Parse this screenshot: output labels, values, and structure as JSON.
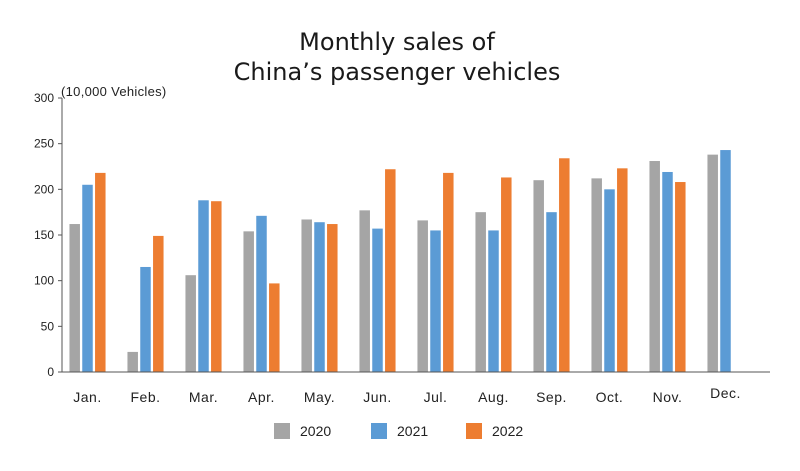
{
  "chart_data": {
    "type": "bar",
    "title_lines": [
      "Monthly sales of",
      "China’s passenger vehicles"
    ],
    "ylabel": "(10,000 Vehicles)",
    "ylim": [
      0,
      300
    ],
    "yticks": [
      "0",
      "50",
      "100",
      "150",
      "200",
      "250",
      "300"
    ],
    "categories": [
      "Jan.",
      "Feb.",
      "Mar.",
      "Apr.",
      "May.",
      "Jun.",
      "Jul.",
      "Aug.",
      "Sep.",
      "Oct.",
      "Nov.",
      "Dec."
    ],
    "series": [
      {
        "name": "2020",
        "color": "#a5a5a5",
        "values": [
          162,
          22,
          106,
          154,
          167,
          177,
          166,
          175,
          210,
          212,
          231,
          238
        ]
      },
      {
        "name": "2021",
        "color": "#5b9bd5",
        "values": [
          205,
          115,
          188,
          171,
          164,
          157,
          155,
          155,
          175,
          200,
          219,
          243
        ]
      },
      {
        "name": "2022",
        "color": "#ed7d31",
        "values": [
          218,
          149,
          187,
          97,
          162,
          222,
          218,
          213,
          234,
          223,
          208,
          null
        ]
      }
    ]
  }
}
